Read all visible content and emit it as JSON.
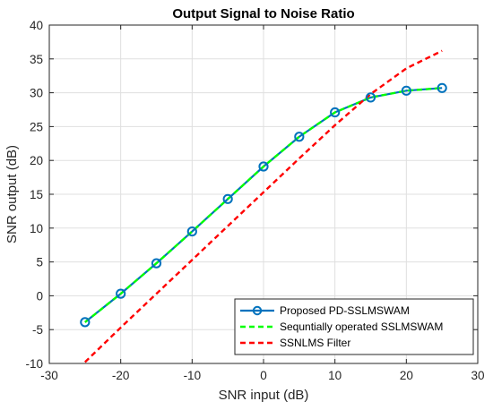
{
  "chart_data": {
    "type": "line",
    "title": "Output Signal to Noise Ratio",
    "xlabel": "SNR input (dB)",
    "ylabel": "SNR output (dB)",
    "xlim": [
      -30,
      30
    ],
    "ylim": [
      -10,
      40
    ],
    "xticks": [
      -30,
      -20,
      -10,
      0,
      10,
      20,
      30
    ],
    "yticks": [
      -10,
      -5,
      0,
      5,
      10,
      15,
      20,
      25,
      30,
      35,
      40
    ],
    "grid": true,
    "legend_position": "bottom-right",
    "series": [
      {
        "name": "Proposed PD-SSLMSWAM",
        "color": "#0072BD",
        "style": "solid",
        "marker": "circle",
        "x": [
          -25,
          -20,
          -15,
          -10,
          -5,
          0,
          5,
          10,
          15,
          20,
          25
        ],
        "y": [
          -3.9,
          0.3,
          4.8,
          9.5,
          14.3,
          19.1,
          23.5,
          27.1,
          29.3,
          30.3,
          30.7
        ]
      },
      {
        "name": "Sequntially operated SSLMSWAM",
        "color": "#00FF00",
        "style": "dashed",
        "marker": "none",
        "x": [
          -25,
          -20,
          -15,
          -10,
          -5,
          0,
          5,
          10,
          15,
          20,
          25
        ],
        "y": [
          -3.9,
          0.3,
          4.8,
          9.5,
          14.3,
          19.1,
          23.5,
          27.1,
          29.3,
          30.3,
          30.7
        ]
      },
      {
        "name": "SSNLMS Filter",
        "color": "#FF0000",
        "style": "dashed",
        "marker": "none",
        "x": [
          -25,
          -20,
          -15,
          -10,
          -5,
          0,
          5,
          10,
          15,
          20,
          25
        ],
        "y": [
          -9.8,
          -4.7,
          0.3,
          5.3,
          10.3,
          15.3,
          20.3,
          25.2,
          29.8,
          33.6,
          36.2
        ]
      }
    ]
  }
}
